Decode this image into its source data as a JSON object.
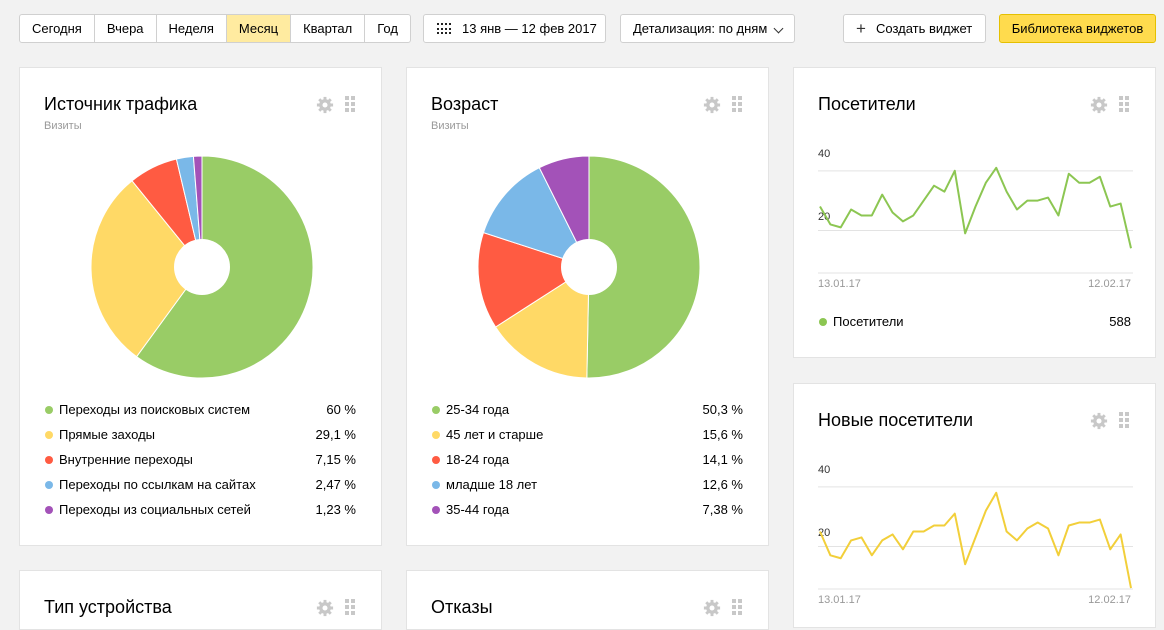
{
  "toolbar": {
    "periods": [
      "Сегодня",
      "Вчера",
      "Неделя",
      "Месяц",
      "Квартал",
      "Год"
    ],
    "active_period": "Месяц",
    "date_range": "13 янв — 12 фев 2017",
    "detail_label": "Детализация: по дням",
    "create_label": "Создать виджет",
    "library_label": "Библиотека виджетов"
  },
  "colors": {
    "green": "#99cc66",
    "yellow": "#ffd966",
    "red": "#ff5b42",
    "blue": "#7ab8e8",
    "purple": "#a352b8",
    "line_green": "#8cc652",
    "line_yellow": "#f2cf3a"
  },
  "traffic": {
    "title": "Источник трафика",
    "subtitle": "Визиты",
    "legend": [
      {
        "label": "Переходы из поисковых систем",
        "value": "60 %",
        "color": "#99cc66"
      },
      {
        "label": "Прямые заходы",
        "value": "29,1 %",
        "color": "#ffd966"
      },
      {
        "label": "Внутренние переходы",
        "value": "7,15 %",
        "color": "#ff5b42"
      },
      {
        "label": "Переходы по ссылкам на сайтах",
        "value": "2,47 %",
        "color": "#7ab8e8"
      },
      {
        "label": "Переходы из социальных сетей",
        "value": "1,23 %",
        "color": "#a352b8"
      }
    ]
  },
  "age": {
    "title": "Возраст",
    "subtitle": "Визиты",
    "legend": [
      {
        "label": "25-34 года",
        "value": "50,3 %",
        "color": "#99cc66"
      },
      {
        "label": "45 лет и старше",
        "value": "15,6 %",
        "color": "#ffd966"
      },
      {
        "label": "18-24 года",
        "value": "14,1 %",
        "color": "#ff5b42"
      },
      {
        "label": "младше 18 лет",
        "value": "12,6 %",
        "color": "#7ab8e8"
      },
      {
        "label": "35-44 года",
        "value": "7,38 %",
        "color": "#a352b8"
      }
    ]
  },
  "visitors": {
    "title": "Посетители",
    "y_ticks": [
      "40",
      "20"
    ],
    "date_start": "13.01.17",
    "date_end": "12.02.17",
    "series_label": "Посетители",
    "series_total": "588"
  },
  "new_visitors": {
    "title": "Новые посетители",
    "y_ticks": [
      "40",
      "20"
    ],
    "date_start": "13.01.17",
    "date_end": "12.02.17"
  },
  "devices": {
    "title": "Тип устройства"
  },
  "bounces": {
    "title": "Отказы"
  },
  "chart_data": [
    {
      "type": "pie",
      "title": "Источник трафика",
      "subtitle": "Визиты",
      "categories": [
        "Переходы из поисковых систем",
        "Прямые заходы",
        "Внутренние переходы",
        "Переходы по ссылкам на сайтах",
        "Переходы из социальных сетей"
      ],
      "values": [
        60,
        29.1,
        7.15,
        2.47,
        1.23
      ]
    },
    {
      "type": "pie",
      "title": "Возраст",
      "subtitle": "Визиты",
      "categories": [
        "25-34 года",
        "45 лет и старше",
        "18-24 года",
        "младше 18 лет",
        "35-44 года"
      ],
      "values": [
        50.3,
        15.6,
        14.1,
        12.6,
        7.38
      ]
    },
    {
      "type": "line",
      "title": "Посетители",
      "x_range": [
        "13.01.17",
        "12.02.17"
      ],
      "ylim": [
        0,
        45
      ],
      "y_ticks": [
        20,
        40
      ],
      "series": [
        {
          "name": "Посетители",
          "values": [
            24,
            18,
            17,
            23,
            21,
            21,
            28,
            22,
            19,
            21,
            26,
            31,
            29,
            36,
            15,
            24,
            32,
            37,
            29,
            23,
            26,
            26,
            27,
            21,
            35,
            32,
            32,
            34,
            24,
            25,
            10
          ]
        }
      ]
    },
    {
      "type": "line",
      "title": "Новые посетители",
      "x_range": [
        "13.01.17",
        "12.02.17"
      ],
      "ylim": [
        0,
        45
      ],
      "y_ticks": [
        20,
        40
      ],
      "series": [
        {
          "values": [
            21,
            13,
            12,
            18,
            19,
            13,
            18,
            20,
            15,
            21,
            21,
            23,
            23,
            27,
            10,
            19,
            28,
            34,
            21,
            18,
            22,
            24,
            22,
            13,
            23,
            24,
            24,
            25,
            15,
            20,
            2
          ]
        }
      ]
    }
  ]
}
